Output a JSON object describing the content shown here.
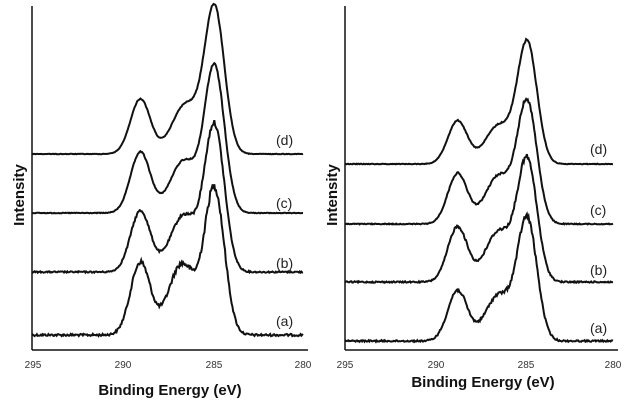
{
  "chart_data": [
    {
      "type": "line",
      "xlabel": "Binding Energy (eV)",
      "ylabel": "Intensity",
      "xlim": [
        295,
        280
      ],
      "xticks": [
        "295",
        "290",
        "285",
        "280"
      ],
      "series": [
        {
          "name": "(a)",
          "peaks": [
            {
              "x": 289.0,
              "y": 0.5
            },
            {
              "x": 286.7,
              "y": 0.49
            },
            {
              "x": 284.9,
              "y": 1.0
            }
          ]
        },
        {
          "name": "(b)",
          "peaks": [
            {
              "x": 289.0,
              "y": 0.42
            },
            {
              "x": 286.6,
              "y": 0.39
            },
            {
              "x": 284.9,
              "y": 1.0
            }
          ]
        },
        {
          "name": "(c)",
          "peaks": [
            {
              "x": 289.0,
              "y": 0.42
            },
            {
              "x": 286.6,
              "y": 0.36
            },
            {
              "x": 284.9,
              "y": 1.0
            }
          ]
        },
        {
          "name": "(d)",
          "peaks": [
            {
              "x": 289.0,
              "y": 0.38
            },
            {
              "x": 286.5,
              "y": 0.34
            },
            {
              "x": 284.9,
              "y": 1.0
            }
          ]
        }
      ]
    },
    {
      "type": "line",
      "xlabel": "Binding Energy (eV)",
      "ylabel": "Intensity",
      "xlim": [
        295,
        280
      ],
      "xticks": [
        "295",
        "290",
        "285",
        "280"
      ],
      "series": [
        {
          "name": "(a)",
          "peaks": [
            {
              "x": 288.7,
              "y": 0.42
            },
            {
              "x": 286.4,
              "y": 0.38
            },
            {
              "x": 284.8,
              "y": 1.0
            }
          ]
        },
        {
          "name": "(b)",
          "peaks": [
            {
              "x": 288.7,
              "y": 0.46
            },
            {
              "x": 286.4,
              "y": 0.42
            },
            {
              "x": 284.8,
              "y": 1.0
            }
          ]
        },
        {
          "name": "(c)",
          "peaks": [
            {
              "x": 288.7,
              "y": 0.42
            },
            {
              "x": 286.4,
              "y": 0.4
            },
            {
              "x": 284.8,
              "y": 1.0
            }
          ]
        },
        {
          "name": "(d)",
          "peaks": [
            {
              "x": 288.7,
              "y": 0.36
            },
            {
              "x": 286.4,
              "y": 0.32
            },
            {
              "x": 284.8,
              "y": 1.0
            }
          ]
        }
      ]
    }
  ]
}
